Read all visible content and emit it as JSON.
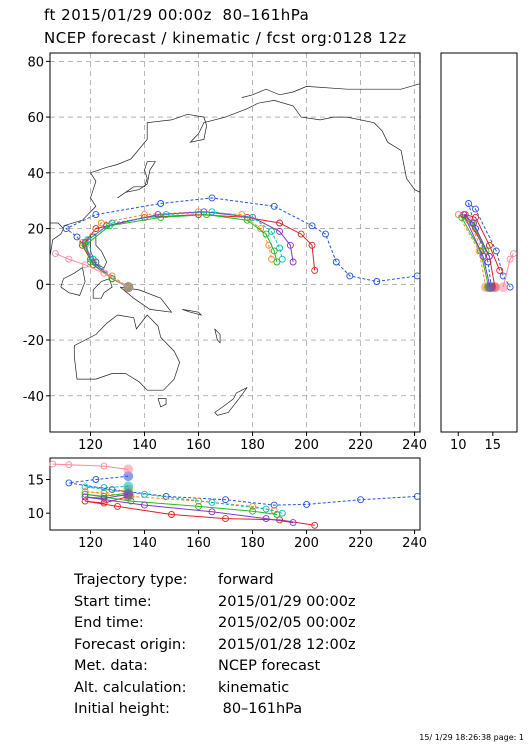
{
  "header": {
    "line1": "ft 2015/01/29 00:00z  80–161hPa",
    "line2": "NCEP forecast / kinematic / fcst org:0128 12z"
  },
  "info": [
    {
      "label": "Trajectory type:",
      "value": "forward"
    },
    {
      "label": "Start time:",
      "value": "2015/01/29 00:00z"
    },
    {
      "label": "End time:",
      "value": "2015/02/05 00:00z"
    },
    {
      "label": "Forecast origin:",
      "value": "2015/01/28 12:00z"
    },
    {
      "label": "Met. data:",
      "value": "NCEP forecast"
    },
    {
      "label": "Alt. calculation:",
      "value": "kinematic"
    },
    {
      "label": "Initial height:",
      "value": " 80–161hPa"
    }
  ],
  "footer": "15/ 1/29 18:26:38 page: 1",
  "chart_data": [
    {
      "type": "line",
      "panel": "map",
      "x_ticks": [
        120,
        140,
        160,
        180,
        200,
        220,
        240
      ],
      "y_ticks": [
        -40,
        -20,
        0,
        20,
        40,
        60,
        80
      ],
      "xlim": [
        105,
        242
      ],
      "ylim": [
        -53,
        83
      ],
      "grid": true,
      "series": [
        {
          "color": "#2255dd",
          "style": "dashed",
          "points": [
            [
              134,
              -1
            ],
            [
              128,
              2
            ],
            [
              122,
              8
            ],
            [
              115,
              17
            ],
            [
              111,
              20
            ],
            [
              122,
              25
            ],
            [
              146,
              29
            ],
            [
              165,
              31
            ],
            [
              188,
              28
            ],
            [
              202,
              21
            ],
            [
              207,
              18
            ],
            [
              211,
              8
            ],
            [
              216,
              3
            ],
            [
              226,
              1
            ],
            [
              241,
              3
            ]
          ]
        },
        {
          "color": "#dd2222",
          "style": "solid",
          "points": [
            [
              134,
              -1
            ],
            [
              128,
              2
            ],
            [
              121,
              7
            ],
            [
              117,
              14
            ],
            [
              122,
              20
            ],
            [
              140,
              24
            ],
            [
              160,
              25
            ],
            [
              178,
              24
            ],
            [
              190,
              22
            ],
            [
              198,
              18
            ],
            [
              202,
              14
            ],
            [
              203,
              5
            ]
          ]
        },
        {
          "color": "#ff8822",
          "style": "dashed",
          "points": [
            [
              134,
              -1
            ],
            [
              128,
              3
            ],
            [
              121,
              9
            ],
            [
              117,
              15
            ],
            [
              124,
              22
            ],
            [
              140,
              25
            ],
            [
              160,
              26
            ],
            [
              176,
              25
            ],
            [
              183,
              20
            ],
            [
              186,
              14
            ],
            [
              187,
              9
            ]
          ]
        },
        {
          "color": "#8833cc",
          "style": "solid",
          "points": [
            [
              134,
              -1
            ],
            [
              128,
              2
            ],
            [
              120,
              9
            ],
            [
              118,
              15
            ],
            [
              126,
              21
            ],
            [
              145,
              25
            ],
            [
              162,
              26
            ],
            [
              180,
              24
            ],
            [
              190,
              19
            ],
            [
              194,
              14
            ],
            [
              195,
              8
            ]
          ]
        },
        {
          "color": "#00bbbb",
          "style": "dashed",
          "points": [
            [
              134,
              -1
            ],
            [
              128,
              2
            ],
            [
              121,
              9
            ],
            [
              119,
              16
            ],
            [
              128,
              22
            ],
            [
              148,
              25
            ],
            [
              165,
              26
            ],
            [
              180,
              24
            ],
            [
              187,
              19
            ],
            [
              190,
              13
            ],
            [
              191,
              9
            ]
          ]
        },
        {
          "color": "#22bb22",
          "style": "solid",
          "points": [
            [
              134,
              -1
            ],
            [
              128,
              2
            ],
            [
              120,
              8
            ],
            [
              118,
              14
            ],
            [
              127,
              21
            ],
            [
              146,
              24
            ],
            [
              163,
              25
            ],
            [
              178,
              23
            ],
            [
              185,
              18
            ],
            [
              188,
              12
            ],
            [
              189,
              8
            ]
          ]
        },
        {
          "color": "#ff8899",
          "style": "solid",
          "points": [
            [
              134,
              -1
            ],
            [
              125,
              4
            ],
            [
              118,
              7
            ],
            [
              112,
              9
            ],
            [
              107,
              11
            ]
          ]
        }
      ]
    },
    {
      "type": "line",
      "panel": "side-latitude",
      "x_ticks": [
        10,
        15
      ],
      "xlim": [
        7.5,
        18.5
      ],
      "ylim": [
        -53,
        83
      ],
      "series": [
        {
          "color": "#2255dd",
          "style": "dashed",
          "points": [
            [
              14.8,
              -1
            ],
            [
              14.3,
              8
            ],
            [
              12.5,
              20
            ],
            [
              11.5,
              29
            ],
            [
              12.5,
              27
            ],
            [
              15.5,
              12
            ],
            [
              16.5,
              3
            ],
            [
              17.5,
              -1
            ]
          ]
        },
        {
          "color": "#dd2222",
          "style": "solid",
          "points": [
            [
              15.3,
              -1
            ],
            [
              14.5,
              10
            ],
            [
              11.0,
              25
            ],
            [
              12.5,
              24
            ],
            [
              14.5,
              14
            ],
            [
              16.0,
              5
            ]
          ]
        },
        {
          "color": "#ff8822",
          "style": "dashed",
          "points": [
            [
              14.0,
              -1
            ],
            [
              13.0,
              12
            ],
            [
              10.0,
              25
            ],
            [
              11.5,
              23
            ],
            [
              13.5,
              12
            ]
          ]
        },
        {
          "color": "#22bb22",
          "style": "solid",
          "points": [
            [
              14.4,
              -1
            ],
            [
              13.2,
              12
            ],
            [
              10.5,
              24
            ],
            [
              12.0,
              22
            ],
            [
              14.0,
              12
            ]
          ]
        },
        {
          "color": "#8833cc",
          "style": "solid",
          "points": [
            [
              14.6,
              -1
            ],
            [
              13.6,
              10
            ],
            [
              10.8,
              25
            ],
            [
              12.2,
              22
            ],
            [
              14.5,
              10
            ]
          ]
        },
        {
          "color": "#ff8899",
          "style": "solid",
          "points": [
            [
              16.5,
              -1
            ],
            [
              17.5,
              9
            ],
            [
              18.0,
              11
            ]
          ]
        }
      ]
    },
    {
      "type": "line",
      "panel": "bottom-height",
      "x_ticks": [
        120,
        140,
        160,
        180,
        200,
        220,
        240
      ],
      "y_ticks": [
        10,
        15
      ],
      "xlim": [
        105,
        242
      ],
      "ylim": [
        7.5,
        18.2
      ],
      "series": [
        {
          "color": "#2255dd",
          "style": "dashed",
          "points": [
            [
              134,
              15.5
            ],
            [
              122,
              15.0
            ],
            [
              112,
              14.5
            ],
            [
              128,
              13.5
            ],
            [
              148,
              12.5
            ],
            [
              170,
              12.0
            ],
            [
              188,
              11.2
            ],
            [
              200,
              11.3
            ],
            [
              220,
              12.0
            ],
            [
              241,
              12.5
            ]
          ]
        },
        {
          "color": "#dd2222",
          "style": "solid",
          "points": [
            [
              134,
              12.5
            ],
            [
              125,
              11.5
            ],
            [
              118,
              11.8
            ],
            [
              130,
              11.0
            ],
            [
              150,
              9.8
            ],
            [
              170,
              9.2
            ],
            [
              190,
              9.0
            ],
            [
              203,
              8.2
            ]
          ]
        },
        {
          "color": "#ff8822",
          "style": "dashed",
          "points": [
            [
              134,
              13.5
            ],
            [
              125,
              13.0
            ],
            [
              118,
              13.2
            ],
            [
              135,
              12.5
            ],
            [
              160,
              11.8
            ],
            [
              180,
              11.0
            ],
            [
              188,
              10.4
            ]
          ]
        },
        {
          "color": "#22bb22",
          "style": "solid",
          "points": [
            [
              134,
              13.0
            ],
            [
              125,
              12.5
            ],
            [
              118,
              12.8
            ],
            [
              135,
              11.8
            ],
            [
              160,
              11.0
            ],
            [
              180,
              10.3
            ],
            [
              189,
              9.8
            ]
          ]
        },
        {
          "color": "#00bbbb",
          "style": "dashed",
          "points": [
            [
              134,
              14.0
            ],
            [
              125,
              13.8
            ],
            [
              118,
              13.9
            ],
            [
              140,
              12.8
            ],
            [
              165,
              11.6
            ],
            [
              185,
              10.6
            ],
            [
              191,
              10.0
            ]
          ]
        },
        {
          "color": "#8833cc",
          "style": "solid",
          "points": [
            [
              134,
              12.8
            ],
            [
              125,
              12.2
            ],
            [
              118,
              12.4
            ],
            [
              140,
              11.2
            ],
            [
              165,
              10.2
            ],
            [
              185,
              9.2
            ],
            [
              195,
              8.6
            ]
          ]
        },
        {
          "color": "#ff8899",
          "style": "solid",
          "points": [
            [
              134,
              16.5
            ],
            [
              125,
              17.0
            ],
            [
              112,
              17.2
            ],
            [
              106,
              17.3
            ]
          ]
        }
      ]
    }
  ]
}
